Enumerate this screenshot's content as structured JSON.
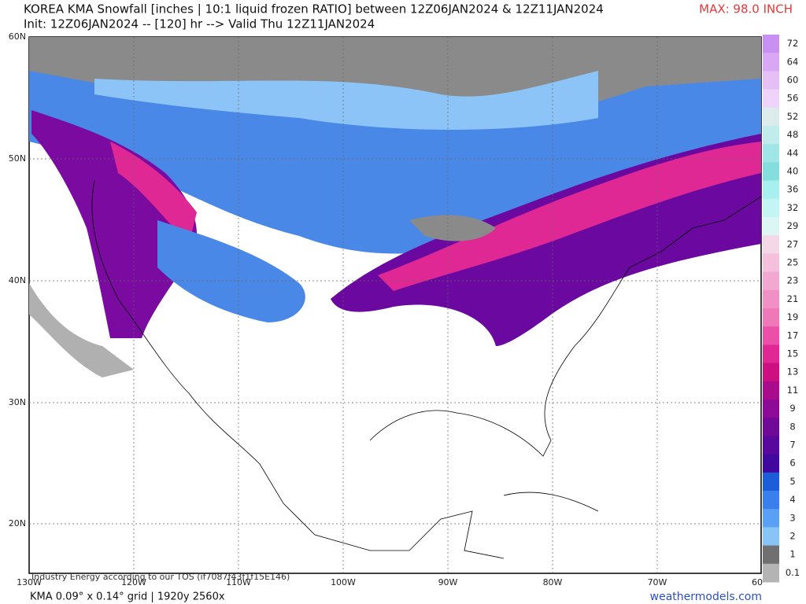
{
  "header": {
    "title": "KOREA KMA Snowfall [inches | 10:1 liquid frozen RATIO] between 12Z06JAN2024 & 12Z11JAN2024",
    "init": "Init: 12Z06JAN2024 -- [120] hr --> Valid Thu 12Z11JAN2024",
    "max": "MAX: 98.0 INCH"
  },
  "map": {
    "lat_labels": [
      "60N",
      "50N",
      "40N",
      "30N",
      "20N"
    ],
    "lon_labels": [
      "130W",
      "120W",
      "110W",
      "100W",
      "90W",
      "80W",
      "70W",
      "60"
    ],
    "watermark": "Industry Energy according to our TOS (if7087f43f1f15E146)"
  },
  "colorbar": {
    "labels": [
      72,
      64,
      60,
      56,
      52,
      48,
      44,
      40,
      36,
      32,
      29,
      27,
      25,
      23,
      21,
      19,
      17,
      15,
      13,
      11,
      9,
      8,
      7,
      6,
      5,
      4,
      3,
      2,
      1,
      0.1
    ],
    "colors": [
      "#c890f0",
      "#d8a8f4",
      "#e4c0f6",
      "#eed4f8",
      "#dcecec",
      "#c0ecec",
      "#a0e6e6",
      "#84dede",
      "#a8f0f0",
      "#c4f4f4",
      "#dcf6f6",
      "#f4d8e8",
      "#f4c0dc",
      "#f2a8d0",
      "#f090c4",
      "#ee78b8",
      "#ea50a8",
      "#e02894",
      "#cc1080",
      "#a80c8c",
      "#8c0a96",
      "#700898",
      "#58089a",
      "#40089c",
      "#1c5ed8",
      "#3a80ec",
      "#5aa0f4",
      "#88c4f8",
      "#707070",
      "#b4b4b4"
    ]
  },
  "footer": {
    "left": "KMA 0.09° x 0.14° grid | 1920y 2560x",
    "right": "weathermodels.com"
  }
}
